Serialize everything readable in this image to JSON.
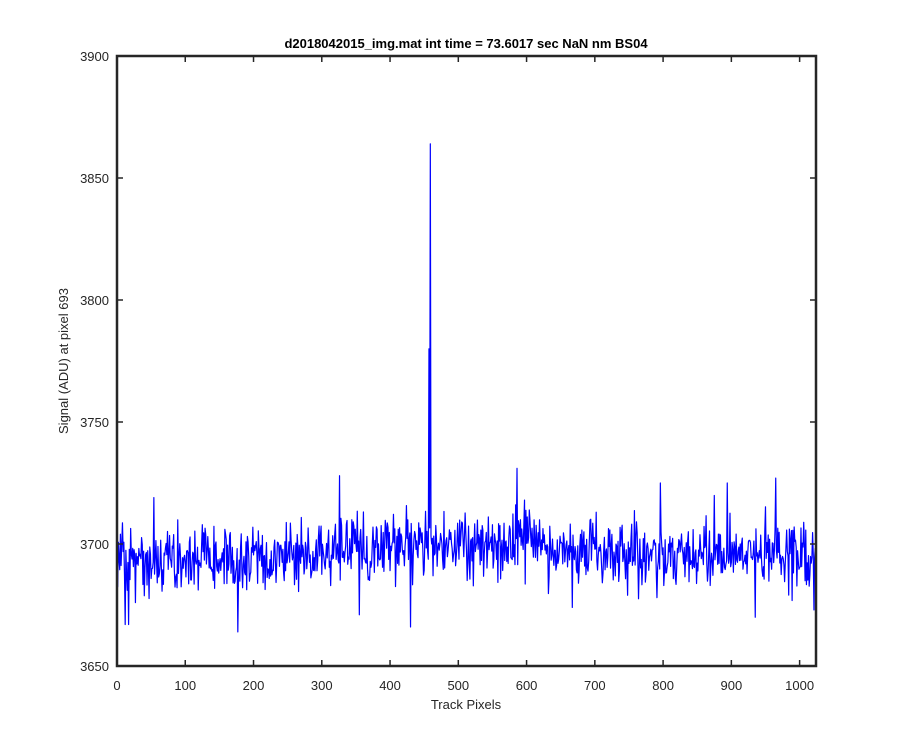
{
  "chart_data": {
    "type": "line",
    "title": "d2018042015_img.mat int time = 73.6017 sec  NaN nm BS04",
    "xlabel": "Track Pixels",
    "ylabel": "Signal (ADU) at pixel 693",
    "xlim": [
      0,
      1024
    ],
    "ylim": [
      3650,
      3900
    ],
    "xticks": [
      0,
      100,
      200,
      300,
      400,
      500,
      600,
      700,
      800,
      900,
      1000
    ],
    "yticks": [
      3650,
      3700,
      3750,
      3800,
      3850,
      3900
    ],
    "grid": false,
    "legend": "none",
    "series": [
      {
        "color": "#0000ff",
        "x_start": 0,
        "x_step": 1,
        "noise_model": {
          "points": 1024,
          "baseline_anchors": [
            [
              0,
              3692
            ],
            [
              150,
              3693
            ],
            [
              300,
              3696
            ],
            [
              450,
              3700
            ],
            [
              600,
              3700
            ],
            [
              750,
              3696
            ],
            [
              900,
              3697
            ],
            [
              1023,
              3695
            ]
          ],
          "amplitude": 6.5,
          "seed": 20180420
        },
        "notable_points": [
          {
            "x": 5,
            "y": 3704
          },
          {
            "x": 12,
            "y": 3667
          },
          {
            "x": 17,
            "y": 3667
          },
          {
            "x": 54,
            "y": 3719
          },
          {
            "x": 177,
            "y": 3664
          },
          {
            "x": 326,
            "y": 3728
          },
          {
            "x": 355,
            "y": 3671
          },
          {
            "x": 430,
            "y": 3666
          },
          {
            "x": 457,
            "y": 3780
          },
          {
            "x": 459,
            "y": 3864
          },
          {
            "x": 461,
            "y": 3700
          },
          {
            "x": 586,
            "y": 3731
          },
          {
            "x": 667,
            "y": 3674
          },
          {
            "x": 796,
            "y": 3725
          },
          {
            "x": 894,
            "y": 3725
          },
          {
            "x": 935,
            "y": 3670
          },
          {
            "x": 965,
            "y": 3727
          },
          {
            "x": 1021,
            "y": 3673
          }
        ]
      }
    ]
  },
  "colors": {
    "line": "#0000ff",
    "axes": "#262626",
    "background": "#ffffff"
  }
}
